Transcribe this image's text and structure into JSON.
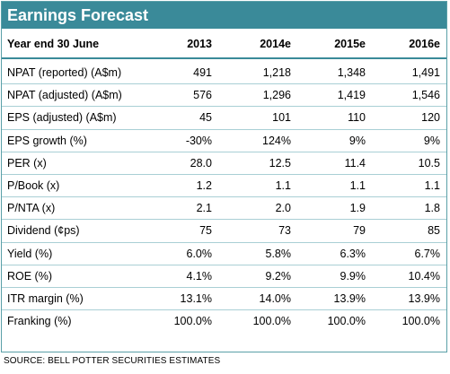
{
  "title": "Earnings Forecast",
  "header": {
    "label": "Year end 30 June",
    "columns": [
      "2013",
      "2014e",
      "2015e",
      "2016e"
    ]
  },
  "rows": [
    {
      "label": "NPAT (reported) (A$m)",
      "values": [
        "491",
        "1,218",
        "1,348",
        "1,491"
      ]
    },
    {
      "label": "NPAT (adjusted) (A$m)",
      "values": [
        "576",
        "1,296",
        "1,419",
        "1,546"
      ]
    },
    {
      "label": "EPS (adjusted) (A$m)",
      "values": [
        "45",
        "101",
        "110",
        "120"
      ]
    },
    {
      "label": "EPS growth (%)",
      "values": [
        "-30%",
        "124%",
        "9%",
        "9%"
      ]
    },
    {
      "label": "PER (x)",
      "values": [
        "28.0",
        "12.5",
        "11.4",
        "10.5"
      ]
    },
    {
      "label": "P/Book (x)",
      "values": [
        "1.2",
        "1.1",
        "1.1",
        "1.1"
      ]
    },
    {
      "label": "P/NTA (x)",
      "values": [
        "2.1",
        "2.0",
        "1.9",
        "1.8"
      ]
    },
    {
      "label": "Dividend (¢ps)",
      "values": [
        "75",
        "73",
        "79",
        "85"
      ]
    },
    {
      "label": "Yield (%)",
      "values": [
        "6.0%",
        "5.8%",
        "6.3%",
        "6.7%"
      ]
    },
    {
      "label": "ROE (%)",
      "values": [
        "4.1%",
        "9.2%",
        "9.9%",
        "10.4%"
      ]
    },
    {
      "label": "ITR margin (%)",
      "values": [
        "13.1%",
        "14.0%",
        "13.9%",
        "13.9%"
      ]
    },
    {
      "label": "Franking (%)",
      "values": [
        "100.0%",
        "100.0%",
        "100.0%",
        "100.0%"
      ]
    }
  ],
  "source": "SOURCE: BELL POTTER SECURITIES ESTIMATES",
  "colors": {
    "title_bg": "#3a8a99",
    "title_text": "#ffffff",
    "row_rule": "#a9cfd5"
  }
}
